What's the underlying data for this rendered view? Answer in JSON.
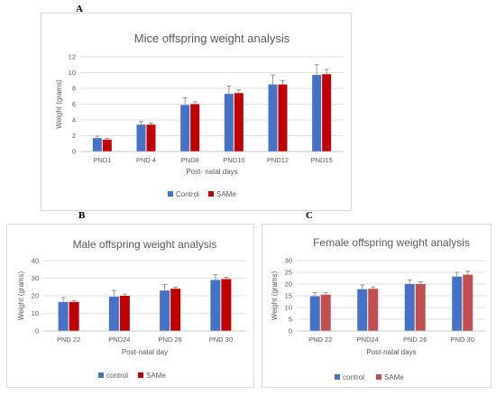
{
  "panels": [
    {
      "letter": "A"
    },
    {
      "letter": "B"
    },
    {
      "letter": "C"
    }
  ],
  "colors": {
    "control": "#4472c4",
    "same_a": "#c00000",
    "same_b": "#c00000",
    "same_c": "#c0504d",
    "grid": "#d9d9d9",
    "error": "#808080"
  },
  "chart_data": [
    {
      "type": "bar",
      "title": "Mice offspring weight analysis",
      "xlabel": "Post- natal days",
      "ylabel": "Weight (grams)",
      "ylim": [
        0,
        12
      ],
      "yticks": [
        0,
        2,
        4,
        6,
        8,
        10,
        12
      ],
      "grid": true,
      "legend_position": "bottom",
      "categories": [
        "PND1",
        "PND 4",
        "PND8",
        "PND10",
        "PND12",
        "PND15"
      ],
      "series": [
        {
          "name": "Control",
          "values": [
            1.7,
            3.4,
            5.9,
            7.3,
            8.5,
            9.7
          ],
          "errors": [
            0.25,
            0.4,
            0.9,
            1.0,
            1.2,
            1.3
          ]
        },
        {
          "name": "SAMe",
          "values": [
            1.5,
            3.4,
            6.0,
            7.4,
            8.5,
            9.8
          ],
          "errors": [
            0.15,
            0.2,
            0.3,
            0.4,
            0.5,
            0.6
          ]
        }
      ]
    },
    {
      "type": "bar",
      "title": "Male offspring weight analysis",
      "xlabel": "Post-natal day",
      "ylabel": "Weight (grams)",
      "ylim": [
        0,
        40
      ],
      "yticks": [
        0,
        10,
        20,
        30,
        40
      ],
      "grid": true,
      "legend_position": "bottom",
      "categories": [
        "PND 22",
        "PND24",
        "PND 26",
        "PND 30"
      ],
      "series": [
        {
          "name": "control",
          "values": [
            16.5,
            19.5,
            23,
            29
          ],
          "errors": [
            2.5,
            3.5,
            3.5,
            3
          ]
        },
        {
          "name": "SAMe",
          "values": [
            16.5,
            20,
            24,
            29.5
          ],
          "errors": [
            0.8,
            1.0,
            0.8,
            1.0
          ]
        }
      ]
    },
    {
      "type": "bar",
      "title": "Female offspring weight analysis",
      "xlabel": "Post-natal days",
      "ylabel": "Weight (grams)",
      "ylim": [
        0,
        30
      ],
      "yticks": [
        0,
        5,
        10,
        15,
        20,
        25,
        30
      ],
      "grid": true,
      "legend_position": "bottom",
      "categories": [
        "PND 22",
        "PND24",
        "PND 26",
        "PND 30"
      ],
      "series": [
        {
          "name": "control",
          "values": [
            14.8,
            17.8,
            20,
            23.2
          ],
          "errors": [
            1.5,
            1.8,
            1.8,
            1.8
          ]
        },
        {
          "name": "SAMe",
          "values": [
            15.5,
            18,
            20,
            24
          ],
          "errors": [
            0.8,
            0.8,
            1.0,
            1.5
          ]
        }
      ]
    }
  ]
}
